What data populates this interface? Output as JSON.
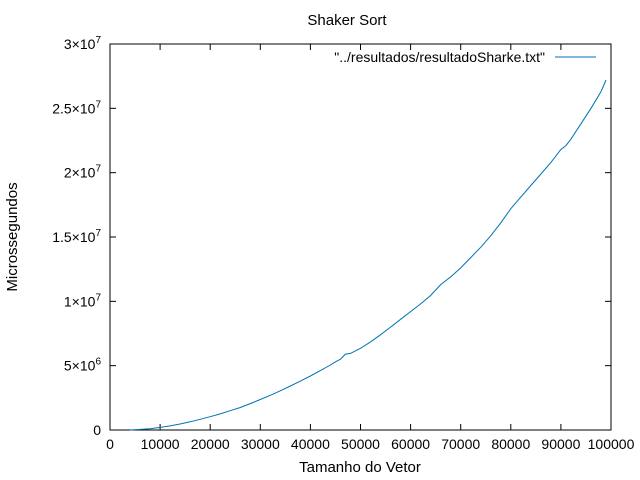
{
  "chart_data": {
    "type": "line",
    "title": "Shaker Sort",
    "xlabel": "Tamanho do Vetor",
    "ylabel": "Microssegundos",
    "xlim": [
      0,
      100000
    ],
    "ylim": [
      0,
      30000000
    ],
    "x_ticks": [
      0,
      10000,
      20000,
      30000,
      40000,
      50000,
      60000,
      70000,
      80000,
      90000,
      100000
    ],
    "x_tick_labels": [
      "0",
      "10000",
      "20000",
      "30000",
      "40000",
      "50000",
      "60000",
      "70000",
      "80000",
      "90000",
      "100000"
    ],
    "y_ticks": [
      0,
      5000000,
      10000000,
      15000000,
      20000000,
      25000000,
      30000000
    ],
    "y_tick_labels": [
      {
        "mant": "0",
        "exp": ""
      },
      {
        "mant": "5×10",
        "exp": "6"
      },
      {
        "mant": "1×10",
        "exp": "7"
      },
      {
        "mant": "1.5×10",
        "exp": "7"
      },
      {
        "mant": "2×10",
        "exp": "7"
      },
      {
        "mant": "2.5×10",
        "exp": "7"
      },
      {
        "mant": "3×10",
        "exp": "7"
      }
    ],
    "grid": false,
    "legend_position": "top-right",
    "series": [
      {
        "name": "\"../resultados/resultadoSharke.txt\"",
        "color": "#0072b2",
        "x": [
          4000,
          6000,
          8000,
          10000,
          12000,
          14000,
          16000,
          18000,
          20000,
          22000,
          24000,
          26000,
          28000,
          30000,
          32000,
          34000,
          36000,
          38000,
          40000,
          42000,
          44000,
          45000,
          46000,
          47000,
          48000,
          50000,
          52000,
          54000,
          56000,
          58000,
          60000,
          62000,
          64000,
          66000,
          68000,
          70000,
          72000,
          74000,
          76000,
          78000,
          80000,
          82000,
          84000,
          86000,
          88000,
          90000,
          91000,
          92000,
          94000,
          96000,
          98000,
          99000
        ],
        "y": [
          0,
          50000,
          100000,
          200000,
          320000,
          470000,
          640000,
          830000,
          1030000,
          1250000,
          1500000,
          1750000,
          2050000,
          2370000,
          2700000,
          3050000,
          3420000,
          3800000,
          4200000,
          4620000,
          5050000,
          5300000,
          5500000,
          5900000,
          5950000,
          6350000,
          6850000,
          7400000,
          8000000,
          8600000,
          9200000,
          9800000,
          10450000,
          11300000,
          11900000,
          12600000,
          13400000,
          14200000,
          15100000,
          16100000,
          17200000,
          18100000,
          19000000,
          19900000,
          20800000,
          21800000,
          22100000,
          22600000,
          23800000,
          25000000,
          26300000,
          27200000
        ]
      }
    ]
  }
}
